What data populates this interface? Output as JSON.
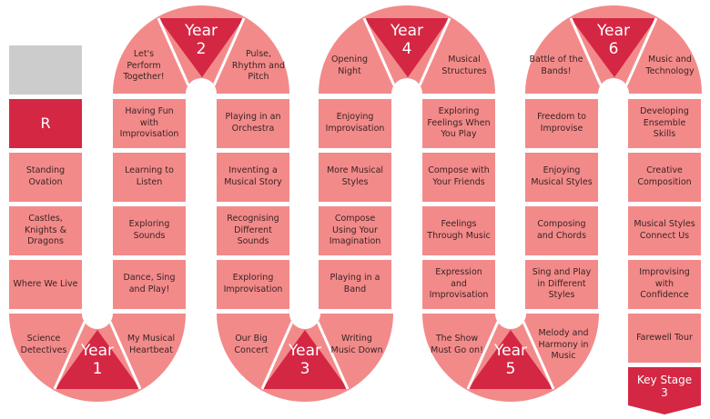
{
  "colors": {
    "light": "#f38a8a",
    "dark": "#d42744",
    "gray": "#cccccc",
    "text": "#3a2323"
  },
  "columns": [
    {
      "id": "col1",
      "cells": [
        "",
        "R",
        "Standing Ovation",
        "Castles, Knights & Dragons",
        "Where We Live",
        "Science Detectives"
      ]
    },
    {
      "id": "col2",
      "cells": [
        "Let's Perform Together!",
        "Having Fun with Improvisation",
        "Learning to Listen",
        "Exploring Sounds",
        "Dance, Sing and Play!",
        "My Musical Heartbeat"
      ]
    },
    {
      "id": "col3",
      "cells": [
        "Pulse, Rhythm and Pitch",
        "Playing in an Orchestra",
        "Inventing a Musical Story",
        "Recognising Different Sounds",
        "Exploring Improvisation",
        "Our Big Concert"
      ]
    },
    {
      "id": "col4",
      "cells": [
        "Opening Night",
        "Enjoying Improvisation",
        "More Musical Styles",
        "Compose Using Your Imagination",
        "Playing in a Band",
        "Writing Music Down"
      ]
    },
    {
      "id": "col5",
      "cells": [
        "Musical Structures",
        "Exploring Feelings When You Play",
        "Compose with Your Friends",
        "Feelings Through Music",
        "Expression and Improvisation",
        "The Show Must Go on!"
      ]
    },
    {
      "id": "col6",
      "cells": [
        "Battle of the Bands!",
        "Freedom to Improvise",
        "Enjoying Musical Styles",
        "Composing and Chords",
        "Sing and Play in Different Styles",
        "Melody and Harmony in Music"
      ]
    },
    {
      "id": "col7",
      "cells": [
        "Music and Technology",
        "Developing Ensemble Skills",
        "Creative Composition",
        "Musical Styles Connect Us",
        "Improvising with Confidence",
        "Farewell Tour"
      ]
    }
  ],
  "years": {
    "year1": {
      "word": "Year",
      "num": "1"
    },
    "year2": {
      "word": "Year",
      "num": "2"
    },
    "year3": {
      "word": "Year",
      "num": "3"
    },
    "year4": {
      "word": "Year",
      "num": "4"
    },
    "year5": {
      "word": "Year",
      "num": "5"
    },
    "year6": {
      "word": "Year",
      "num": "6"
    }
  },
  "key_stage": {
    "line1": "Key Stage",
    "line2": "3"
  }
}
